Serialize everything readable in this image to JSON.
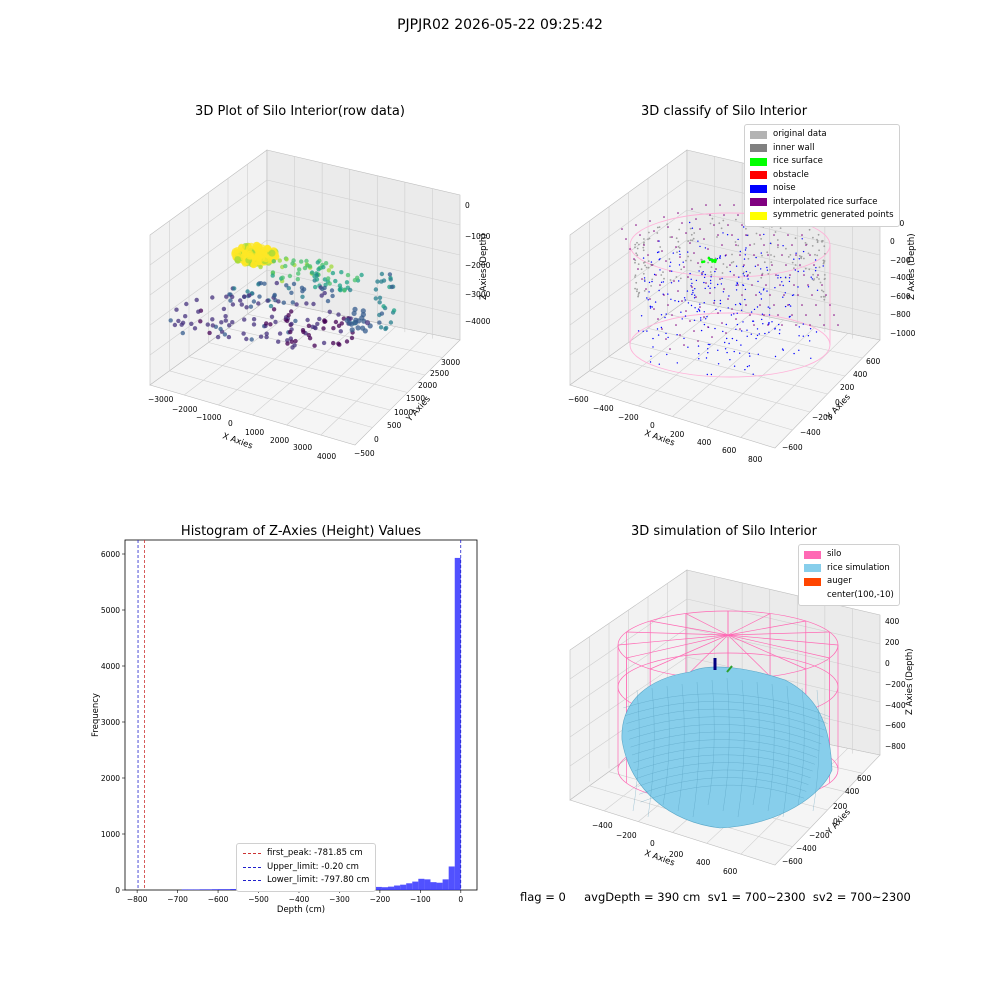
{
  "suptitle": "PJPJR02 2026-05-22 09:25:42",
  "status_text": "flag = 0     avgDepth = 390 cm  sv1 = 700~2300  sv2 = 700~2300",
  "chart_data": [
    {
      "type": "scatter",
      "title": "3D Plot of Silo Interior(row data)",
      "xlabel": "X Axies",
      "ylabel": "Y Axies",
      "zlabel": "Z Axies (Depth)",
      "x_ticks": [
        "−3000",
        "−2000",
        "−1000",
        "0",
        "1000",
        "2000",
        "3000",
        "4000"
      ],
      "y_ticks": [
        "−500",
        "0",
        "500",
        "1000",
        "1500",
        "2000",
        "2500",
        "3000"
      ],
      "z_ticks": [
        "0",
        "−1000",
        "−2000",
        "−3000",
        "−4000"
      ],
      "xlim": [
        -3200,
        4300
      ],
      "ylim": [
        -600,
        3300
      ],
      "zlim": [
        -4600,
        200
      ],
      "colormap": "viridis"
    },
    {
      "type": "scatter",
      "title": "3D classify of Silo Interior",
      "xlabel": "X Axies",
      "ylabel": "Y Axies",
      "zlabel": "Z Axies (Depth)",
      "x_ticks": [
        "−600",
        "−400",
        "−200",
        "0",
        "200",
        "400",
        "600",
        "800"
      ],
      "y_ticks": [
        "−600",
        "−400",
        "−200",
        "0",
        "200",
        "400",
        "600"
      ],
      "z_ticks": [
        "200",
        "0",
        "−200",
        "−400",
        "−600",
        "−800",
        "−1000"
      ],
      "legend": [
        {
          "label": "original data",
          "color": "#b3b3b3"
        },
        {
          "label": "inner wall",
          "color": "#808080"
        },
        {
          "label": "rice surface",
          "color": "#00ff00"
        },
        {
          "label": "obstacle",
          "color": "#ff0000"
        },
        {
          "label": "noise",
          "color": "#0000ff"
        },
        {
          "label": "interpolated rice surface",
          "color": "#800080"
        },
        {
          "label": "symmetric generated points",
          "color": "#ffff00"
        }
      ],
      "legend_position": "top-right"
    },
    {
      "type": "bar",
      "title": "Histogram of Z-Axies (Height) Values",
      "xlabel": "Depth (cm)",
      "ylabel": "Frequency",
      "xlim": [
        -830,
        40
      ],
      "ylim": [
        0,
        6250
      ],
      "x_ticks": [
        -800,
        -700,
        -600,
        -500,
        -400,
        -300,
        -200,
        -100,
        0
      ],
      "y_ticks": [
        0,
        1000,
        2000,
        3000,
        4000,
        5000,
        6000
      ],
      "bin_width": 15,
      "bins": [
        {
          "x0": -690,
          "count": 10
        },
        {
          "x0": -675,
          "count": 10
        },
        {
          "x0": -660,
          "count": 10
        },
        {
          "x0": -645,
          "count": 12
        },
        {
          "x0": -630,
          "count": 12
        },
        {
          "x0": -615,
          "count": 14
        },
        {
          "x0": -600,
          "count": 15
        },
        {
          "x0": -585,
          "count": 15
        },
        {
          "x0": -570,
          "count": 18
        },
        {
          "x0": -555,
          "count": 18
        },
        {
          "x0": -540,
          "count": 20
        },
        {
          "x0": -525,
          "count": 20
        },
        {
          "x0": -510,
          "count": 22
        },
        {
          "x0": -495,
          "count": 22
        },
        {
          "x0": -480,
          "count": 25
        },
        {
          "x0": -465,
          "count": 25
        },
        {
          "x0": -450,
          "count": 28
        },
        {
          "x0": -435,
          "count": 28
        },
        {
          "x0": -420,
          "count": 30
        },
        {
          "x0": -405,
          "count": 30
        },
        {
          "x0": -390,
          "count": 32
        },
        {
          "x0": -375,
          "count": 32
        },
        {
          "x0": -360,
          "count": 35
        },
        {
          "x0": -345,
          "count": 35
        },
        {
          "x0": -330,
          "count": 38
        },
        {
          "x0": -315,
          "count": 38
        },
        {
          "x0": -300,
          "count": 40
        },
        {
          "x0": -285,
          "count": 40
        },
        {
          "x0": -270,
          "count": 42
        },
        {
          "x0": -255,
          "count": 42
        },
        {
          "x0": -240,
          "count": 45
        },
        {
          "x0": -225,
          "count": 50
        },
        {
          "x0": -210,
          "count": 55
        },
        {
          "x0": -195,
          "count": 50
        },
        {
          "x0": -180,
          "count": 60
        },
        {
          "x0": -165,
          "count": 80
        },
        {
          "x0": -150,
          "count": 95
        },
        {
          "x0": -135,
          "count": 120
        },
        {
          "x0": -120,
          "count": 150
        },
        {
          "x0": -105,
          "count": 200
        },
        {
          "x0": -90,
          "count": 190
        },
        {
          "x0": -75,
          "count": 140
        },
        {
          "x0": -60,
          "count": 130
        },
        {
          "x0": -45,
          "count": 190
        },
        {
          "x0": -30,
          "count": 420
        },
        {
          "x0": -15,
          "count": 5930
        }
      ],
      "vlines": [
        {
          "label": "first_peak: -781.85 cm",
          "x": -781.85,
          "color": "#cc3333"
        },
        {
          "label": "Upper_limit: -0.20 cm",
          "x": -0.2,
          "color": "#2020cc"
        },
        {
          "label": "Lower_limit: -797.80 cm",
          "x": -797.8,
          "color": "#2020cc"
        }
      ],
      "legend_position": "lower center"
    },
    {
      "type": "surface",
      "title": "3D simulation of Silo Interior",
      "xlabel": "X Axies",
      "ylabel": "Y Axies",
      "zlabel": "Z Axies (Depth)",
      "x_ticks": [
        "−400",
        "−200",
        "0",
        "200",
        "400",
        "600"
      ],
      "y_ticks": [
        "−600",
        "−400",
        "−200",
        "0",
        "200",
        "400",
        "600"
      ],
      "z_ticks": [
        "400",
        "200",
        "0",
        "−200",
        "−400",
        "−600",
        "−800"
      ],
      "legend": [
        {
          "label": "silo",
          "color": "#ff69b4"
        },
        {
          "label": "rice simulation",
          "color": "#87ceeb"
        },
        {
          "label": "auger",
          "color": "#ff4500"
        },
        {
          "label": "center(100,-10)",
          "color": ""
        }
      ],
      "legend_position": "top-right"
    }
  ]
}
